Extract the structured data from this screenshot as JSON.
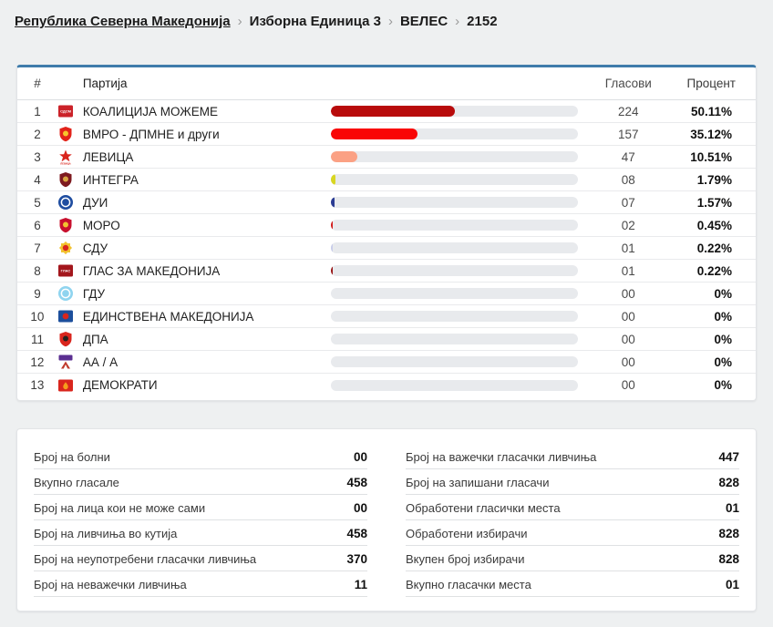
{
  "breadcrumb": {
    "separator": "›",
    "items": [
      {
        "label": "Република Северна Македонија",
        "link": true
      },
      {
        "label": "Изборна Единица 3",
        "link": false
      },
      {
        "label": "ВЕЛЕС",
        "link": false
      },
      {
        "label": "2152",
        "link": false
      }
    ]
  },
  "results": {
    "headers": {
      "num": "#",
      "party": "Партија",
      "votes": "Гласови",
      "percent": "Процент"
    },
    "track_color": "#e8eaed",
    "rows": [
      {
        "num": 1,
        "party": "КОАЛИЦИЈА МОЖЕМЕ",
        "votes": "224",
        "percent": "50.11%",
        "pct": 50.11,
        "bar_color": "#b80b0b",
        "logo": {
          "type": "square",
          "bg": "#cb2229",
          "fg": "#ffffff",
          "text": "СДСМ"
        }
      },
      {
        "num": 2,
        "party": "ВМРО - ДПМНЕ и други",
        "votes": "157",
        "percent": "35.12%",
        "pct": 35.12,
        "bar_color": "#f90606",
        "logo": {
          "type": "shield",
          "bg": "#e2231a",
          "fg": "#f7c52c"
        }
      },
      {
        "num": 3,
        "party": "ЛЕВИЦА",
        "votes": "47",
        "percent": "10.51%",
        "pct": 10.51,
        "bar_color": "#fba184",
        "logo": {
          "type": "star",
          "bg": "#ffffff",
          "fg": "#d9251d",
          "text": "ЛЕВИЦА"
        }
      },
      {
        "num": 4,
        "party": "ИНТЕГРА",
        "votes": "08",
        "percent": "1.79%",
        "pct": 1.79,
        "bar_color": "#d8d622",
        "logo": {
          "type": "shield",
          "bg": "#7e1a1f",
          "fg": "#d9a441"
        }
      },
      {
        "num": 5,
        "party": "ДУИ",
        "votes": "07",
        "percent": "1.57%",
        "pct": 1.57,
        "bar_color": "#2b3c93",
        "logo": {
          "type": "circle",
          "bg": "#1f4da0",
          "fg": "#ffffff"
        }
      },
      {
        "num": 6,
        "party": "МОРО",
        "votes": "02",
        "percent": "0.45%",
        "pct": 0.45,
        "bar_color": "#d21b1b",
        "logo": {
          "type": "shield",
          "bg": "#c8102e",
          "fg": "#f2c230"
        }
      },
      {
        "num": 7,
        "party": "СДУ",
        "votes": "01",
        "percent": "0.22%",
        "pct": 0.22,
        "bar_color": "#c9cdea",
        "logo": {
          "type": "sun",
          "bg": "#f2c230",
          "fg": "#d9251d"
        }
      },
      {
        "num": 8,
        "party": "ГЛАС ЗА МАКЕДОНИЈА",
        "votes": "01",
        "percent": "0.22%",
        "pct": 0.22,
        "bar_color": "#991616",
        "logo": {
          "type": "square",
          "bg": "#a3161c",
          "fg": "#ffffff",
          "text": "ГЛАС"
        }
      },
      {
        "num": 9,
        "party": "ГДУ",
        "votes": "00",
        "percent": "0%",
        "pct": 0,
        "bar_color": "",
        "logo": {
          "type": "circle",
          "bg": "#8fd4ef",
          "fg": "#ffffff"
        }
      },
      {
        "num": 10,
        "party": "ЕДИНСТВЕНА МАКЕДОНИЈА",
        "votes": "00",
        "percent": "0%",
        "pct": 0,
        "bar_color": "",
        "logo": {
          "type": "square",
          "bg": "#1c4f9c",
          "fg": "#d9251d"
        }
      },
      {
        "num": 11,
        "party": "ДПА",
        "votes": "00",
        "percent": "0%",
        "pct": 0,
        "bar_color": "",
        "logo": {
          "type": "shield",
          "bg": "#d9251d",
          "fg": "#26211e"
        }
      },
      {
        "num": 12,
        "party": "АА / А",
        "votes": "00",
        "percent": "0%",
        "pct": 0,
        "bar_color": "",
        "logo": {
          "type": "banner",
          "bg": "#5b2f91",
          "fg": "#c0392b"
        }
      },
      {
        "num": 13,
        "party": "ДЕМОКРАТИ",
        "votes": "00",
        "percent": "0%",
        "pct": 0,
        "bar_color": "",
        "logo": {
          "type": "flame",
          "bg": "#d9251d",
          "fg": "#f59e1d"
        }
      }
    ]
  },
  "stats": {
    "left": [
      {
        "label": "Број на болни",
        "value": "00"
      },
      {
        "label": "Вкупно гласале",
        "value": "458"
      },
      {
        "label": "Број на лица кои не може сами",
        "value": "00"
      },
      {
        "label": "Број на ливчиња во кутија",
        "value": "458"
      },
      {
        "label": "Број на неупотребени гласачки ливчиња",
        "value": "370"
      },
      {
        "label": "Број на неважечки ливчиња",
        "value": "11"
      }
    ],
    "right": [
      {
        "label": "Број на важечки гласачки ливчиња",
        "value": "447"
      },
      {
        "label": "Број на запишани гласачи",
        "value": "828"
      },
      {
        "label": "Обработени гласички места",
        "value": "01"
      },
      {
        "label": "Обработени избирачи",
        "value": "828"
      },
      {
        "label": "Вкупен број избирачи",
        "value": "828"
      },
      {
        "label": "Вкупно гласачки места",
        "value": "01"
      }
    ]
  }
}
